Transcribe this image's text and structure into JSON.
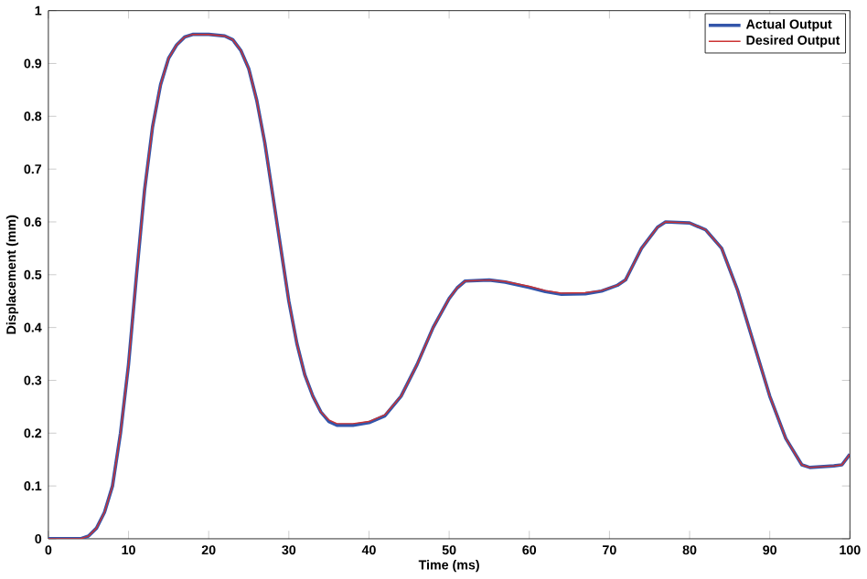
{
  "chart_data": {
    "type": "line",
    "xlabel": "Time (ms)",
    "ylabel": "Displacement (mm)",
    "x": [
      0,
      4,
      5,
      6,
      7,
      8,
      9,
      10,
      11,
      12,
      13,
      14,
      15,
      16,
      17,
      18,
      20,
      22,
      23,
      24,
      25,
      26,
      27,
      28,
      29,
      30,
      31,
      32,
      33,
      34,
      35,
      36,
      38,
      40,
      42,
      44,
      46,
      48,
      50,
      51,
      52,
      55,
      57,
      60,
      62,
      64,
      67,
      69,
      71,
      72,
      73,
      74,
      76,
      77,
      80,
      82,
      84,
      86,
      88,
      90,
      92,
      94,
      95,
      98,
      99,
      100
    ],
    "series": [
      {
        "name": "Actual Output",
        "color": "#3355aa",
        "values": [
          0,
          0,
          0.005,
          0.02,
          0.05,
          0.1,
          0.2,
          0.33,
          0.5,
          0.66,
          0.78,
          0.86,
          0.91,
          0.935,
          0.95,
          0.955,
          0.955,
          0.952,
          0.945,
          0.925,
          0.89,
          0.83,
          0.75,
          0.65,
          0.55,
          0.45,
          0.37,
          0.31,
          0.27,
          0.24,
          0.222,
          0.215,
          0.215,
          0.22,
          0.233,
          0.27,
          0.33,
          0.4,
          0.455,
          0.475,
          0.488,
          0.49,
          0.486,
          0.476,
          0.468,
          0.463,
          0.464,
          0.469,
          0.48,
          0.49,
          0.52,
          0.55,
          0.59,
          0.6,
          0.598,
          0.585,
          0.55,
          0.47,
          0.37,
          0.27,
          0.19,
          0.14,
          0.135,
          0.138,
          0.14,
          0.16
        ]
      },
      {
        "name": "Desired Output",
        "color": "#cc3333",
        "values": [
          0,
          0,
          0.005,
          0.02,
          0.05,
          0.1,
          0.2,
          0.33,
          0.5,
          0.66,
          0.78,
          0.86,
          0.91,
          0.935,
          0.95,
          0.955,
          0.955,
          0.952,
          0.945,
          0.925,
          0.89,
          0.83,
          0.75,
          0.65,
          0.55,
          0.45,
          0.37,
          0.31,
          0.27,
          0.24,
          0.225,
          0.218,
          0.218,
          0.222,
          0.235,
          0.27,
          0.33,
          0.4,
          0.455,
          0.475,
          0.488,
          0.49,
          0.487,
          0.478,
          0.47,
          0.465,
          0.466,
          0.47,
          0.48,
          0.49,
          0.52,
          0.55,
          0.59,
          0.6,
          0.598,
          0.585,
          0.55,
          0.47,
          0.37,
          0.27,
          0.19,
          0.14,
          0.135,
          0.138,
          0.14,
          0.16
        ]
      }
    ],
    "xlim": [
      0,
      100
    ],
    "xticks": [
      0,
      10,
      20,
      30,
      40,
      50,
      60,
      70,
      80,
      90,
      100
    ],
    "ylim": [
      0,
      1
    ],
    "yticks": [
      0,
      0.1,
      0.2,
      0.3,
      0.4,
      0.5,
      0.6,
      0.7,
      0.8,
      0.9,
      1
    ],
    "grid": false,
    "legend": "top right",
    "marker": "none",
    "line_style": "solid"
  }
}
